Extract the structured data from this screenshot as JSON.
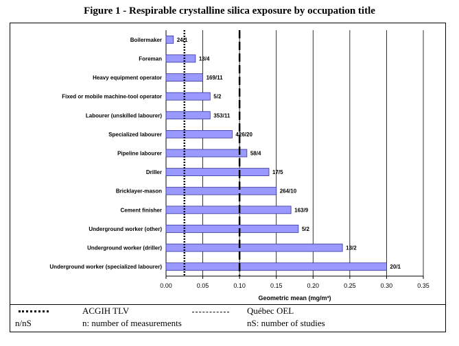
{
  "figure_title": "Figure 1 - Respirable crystalline silica exposure by occupation title",
  "chart_data": {
    "type": "bar",
    "orientation": "horizontal",
    "categories": [
      "Boilermaker",
      "Foreman",
      "Heavy equipment operator",
      "Fixed or mobile machine-tool operator",
      "Labourer (unskilled labourer)",
      "Specialized labourer",
      "Pipeline labourer",
      "Driller",
      "Bricklayer-mason",
      "Cement finisher",
      "Underground worker (other)",
      "Underground worker (driller)",
      "Underground worker (specialized labourer)"
    ],
    "values": [
      0.01,
      0.04,
      0.05,
      0.06,
      0.06,
      0.09,
      0.11,
      0.14,
      0.15,
      0.17,
      0.18,
      0.24,
      0.3
    ],
    "data_labels": [
      "24/1",
      "13/4",
      "169/11",
      "5/2",
      "353/11",
      "426/20",
      "58/4",
      "17/5",
      "264/10",
      "163/9",
      "5/2",
      "13/2",
      "20/1"
    ],
    "xlabel": "Geometric mean (mg/m³)",
    "xlim": [
      0,
      0.35
    ],
    "xticks": [
      0.0,
      0.05,
      0.1,
      0.15,
      0.2,
      0.25,
      0.3,
      0.35
    ],
    "xtick_labels": [
      "0.00",
      "0.05",
      "0.10",
      "0.15",
      "0.20",
      "0.25",
      "0.30",
      "0.35"
    ],
    "reference_lines": [
      {
        "value": 0.025,
        "style": "dotted"
      },
      {
        "value": 0.1,
        "style": "dashed"
      }
    ],
    "bar_color": "#9999ff",
    "bar_edge_color": "#333399",
    "grid": "vertical"
  },
  "legend": {
    "acgih_label": "ACGIH TLV",
    "oel_label": "Québec OEL",
    "nns_label": "n/nS",
    "n_def": "n: number of measurements",
    "ns_def": "nS: number of studies"
  }
}
